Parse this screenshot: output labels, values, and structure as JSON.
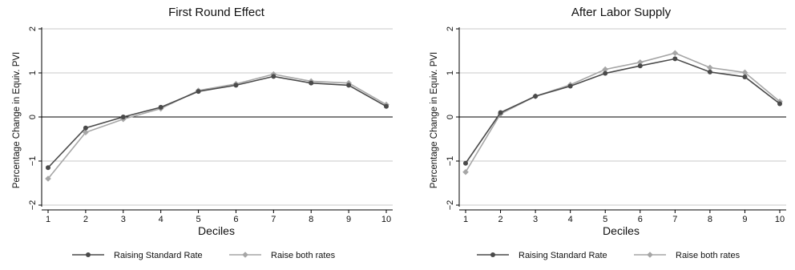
{
  "chart_data": [
    {
      "type": "line",
      "title": "First Round Effect",
      "xlabel": "Deciles",
      "ylabel": "Percentage Change in Equiv. PVI",
      "x": [
        1,
        2,
        3,
        4,
        5,
        6,
        7,
        8,
        9,
        10
      ],
      "xlim": [
        1,
        10
      ],
      "ylim": [
        -2,
        2
      ],
      "yticks": [
        -2,
        -1,
        0,
        1,
        2
      ],
      "ytick_labels": [
        "−2",
        "−1",
        "0",
        "1",
        "2"
      ],
      "grid": true,
      "legend_position": "bottom",
      "series": [
        {
          "name": "Raising Standard Rate",
          "color": "#4a4a4a",
          "marker": "circle",
          "values": [
            -1.15,
            -0.25,
            0.0,
            0.22,
            0.58,
            0.72,
            0.92,
            0.77,
            0.72,
            0.24
          ]
        },
        {
          "name": "Raise both rates",
          "color": "#a6a6a6",
          "marker": "diamond",
          "values": [
            -1.4,
            -0.35,
            -0.05,
            0.19,
            0.6,
            0.75,
            0.97,
            0.81,
            0.77,
            0.28
          ]
        }
      ]
    },
    {
      "type": "line",
      "title": "After Labor Supply",
      "xlabel": "Deciles",
      "ylabel": "Percentage Change in Equiv. PVI",
      "x": [
        1,
        2,
        3,
        4,
        5,
        6,
        7,
        8,
        9,
        10
      ],
      "xlim": [
        1,
        10
      ],
      "ylim": [
        -2,
        2
      ],
      "yticks": [
        -2,
        -1,
        0,
        1,
        2
      ],
      "ytick_labels": [
        "−2",
        "−1",
        "0",
        "1",
        "2"
      ],
      "grid": true,
      "legend_position": "bottom",
      "series": [
        {
          "name": "Raising Standard Rate",
          "color": "#4a4a4a",
          "marker": "circle",
          "values": [
            -1.05,
            0.1,
            0.47,
            0.7,
            0.99,
            1.16,
            1.32,
            1.02,
            0.91,
            0.3
          ]
        },
        {
          "name": "Raise both rates",
          "color": "#a6a6a6",
          "marker": "diamond",
          "values": [
            -1.25,
            0.07,
            0.47,
            0.73,
            1.08,
            1.24,
            1.45,
            1.12,
            1.01,
            0.35
          ]
        }
      ]
    }
  ]
}
